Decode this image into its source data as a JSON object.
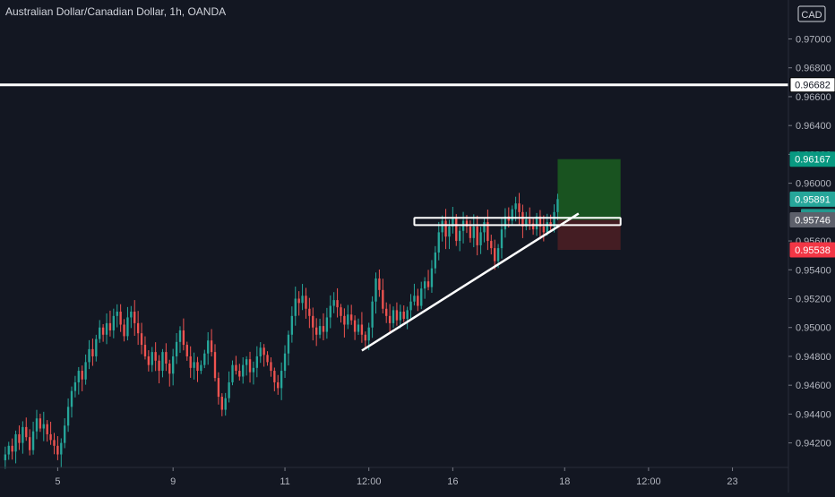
{
  "header": {
    "symbol_title": "Australian Dollar/Canadian Dollar, 1h, OANDA",
    "currency_label": "CAD"
  },
  "colors": {
    "background": "#131722",
    "bull": "#26a69a",
    "bear": "#ef5350",
    "text": "#b2b5be",
    "target_zone": "#1b5e20",
    "stop_zone": "#4a1e24",
    "target_badge": "#089981",
    "stop_badge": "#f23645",
    "current_badge": "#26a69a",
    "entry_badge": "#5d606b",
    "timer_badge": "#26a69a"
  },
  "chart_data": {
    "type": "candlestick",
    "instrument": "AUD/CAD",
    "timeframe": "1h",
    "source": "OANDA",
    "ylim": [
      0.9403,
      0.9727
    ],
    "y_ticks": [
      0.942,
      0.944,
      0.946,
      0.948,
      0.95,
      0.952,
      0.954,
      0.956,
      0.96,
      0.962,
      0.964,
      0.966,
      0.968,
      0.97
    ],
    "x_ticks": [
      {
        "label": "5",
        "bar": 15
      },
      {
        "label": "9",
        "bar": 48
      },
      {
        "label": "11",
        "bar": 80
      },
      {
        "label": "12:00",
        "bar": 104
      },
      {
        "label": "16",
        "bar": 128
      },
      {
        "label": "18",
        "bar": 160
      },
      {
        "label": "12:00",
        "bar": 184
      },
      {
        "label": "23",
        "bar": 208
      }
    ],
    "bar_count_range": [
      -1.5,
      224
    ],
    "closes": [
      0.9412,
      0.9418,
      0.9414,
      0.9426,
      0.942,
      0.9431,
      0.9424,
      0.9415,
      0.9428,
      0.9437,
      0.943,
      0.9433,
      0.9426,
      0.9422,
      0.9418,
      0.9412,
      0.942,
      0.9432,
      0.9445,
      0.9456,
      0.9462,
      0.947,
      0.9464,
      0.9476,
      0.9485,
      0.948,
      0.9492,
      0.95,
      0.9495,
      0.9503,
      0.9498,
      0.9508,
      0.9511,
      0.9502,
      0.9494,
      0.9507,
      0.9511,
      0.9503,
      0.9496,
      0.9488,
      0.948,
      0.9474,
      0.9483,
      0.9477,
      0.947,
      0.9483,
      0.9475,
      0.9468,
      0.948,
      0.949,
      0.9498,
      0.9488,
      0.948,
      0.9472,
      0.9476,
      0.947,
      0.9474,
      0.9482,
      0.9491,
      0.9483,
      0.9465,
      0.9452,
      0.9443,
      0.9451,
      0.9462,
      0.9474,
      0.947,
      0.9466,
      0.9474,
      0.9478,
      0.9469,
      0.9472,
      0.948,
      0.9486,
      0.9481,
      0.9476,
      0.947,
      0.9462,
      0.9458,
      0.947,
      0.9482,
      0.9495,
      0.9508,
      0.952,
      0.9517,
      0.9522,
      0.9513,
      0.9508,
      0.95,
      0.9495,
      0.9501,
      0.9497,
      0.9507,
      0.9515,
      0.9519,
      0.9514,
      0.9508,
      0.9502,
      0.9509,
      0.9505,
      0.9497,
      0.9502,
      0.9495,
      0.9491,
      0.95,
      0.9518,
      0.9534,
      0.9526,
      0.9513,
      0.9508,
      0.9503,
      0.9512,
      0.9505,
      0.9511,
      0.9506,
      0.9512,
      0.9518,
      0.9522,
      0.9515,
      0.9527,
      0.9532,
      0.9528,
      0.9541,
      0.9552,
      0.9566,
      0.9574,
      0.9563,
      0.957,
      0.9576,
      0.956,
      0.9567,
      0.9574,
      0.957,
      0.9562,
      0.957,
      0.9557,
      0.9566,
      0.9573,
      0.956,
      0.9555,
      0.9546,
      0.9555,
      0.9568,
      0.9577,
      0.9574,
      0.9582,
      0.9586,
      0.958,
      0.957,
      0.9575,
      0.9572,
      0.9568,
      0.9577,
      0.957,
      0.9566,
      0.9573,
      0.957,
      0.958,
      0.9589
    ],
    "position": {
      "type": "long",
      "entry": 0.95746,
      "target": 0.96167,
      "stop": 0.95538,
      "bar_start": 158,
      "bar_end": 176
    },
    "horizontal_level": 0.96682,
    "consolidation_box": {
      "y_top": 0.9576,
      "y_bottom": 0.9571,
      "bar_start": 117,
      "bar_end": 176
    },
    "trendline": {
      "from": {
        "bar": 102,
        "price": 0.9484
      },
      "to": {
        "bar": 164,
        "price": 0.9579
      }
    },
    "price_labels": {
      "horizontal_level": "0.96682",
      "target": "0.96167",
      "current": "0.95891",
      "countdown": "50:12",
      "entry": "0.95746",
      "stop": "0.95538"
    }
  }
}
